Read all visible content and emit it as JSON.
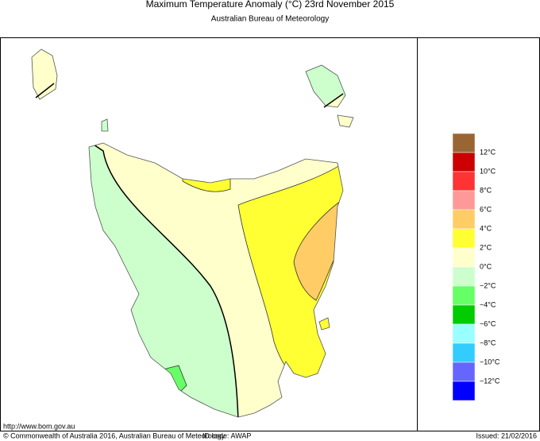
{
  "header": {
    "title": "Maximum Temperature Anomaly (°C)  23rd November 2015",
    "subtitle": "Australian Bureau of Meteorology"
  },
  "legend": {
    "colors": [
      "#996633",
      "#cc0000",
      "#ff3333",
      "#ff9999",
      "#ffcc66",
      "#ffff33",
      "#ffffcc",
      "#ccffcc",
      "#66ff66",
      "#00cc00",
      "#99ffff",
      "#33ccff",
      "#6666ff",
      "#0000ff"
    ],
    "labels": [
      "12°C",
      "10°C",
      "8°C",
      "6°C",
      "4°C",
      "2°C",
      "0°C",
      "−2°C",
      "−4°C",
      "−6°C",
      "−8°C",
      "−10°C",
      "−12°C"
    ]
  },
  "footer": {
    "url": "http://www.bom.gov.au",
    "copyright": "© Commonwealth of Australia 2016, Australian Bureau of Meteorology",
    "id_code": "ID code: AWAP",
    "issued": "Issued: 21/02/2016"
  }
}
